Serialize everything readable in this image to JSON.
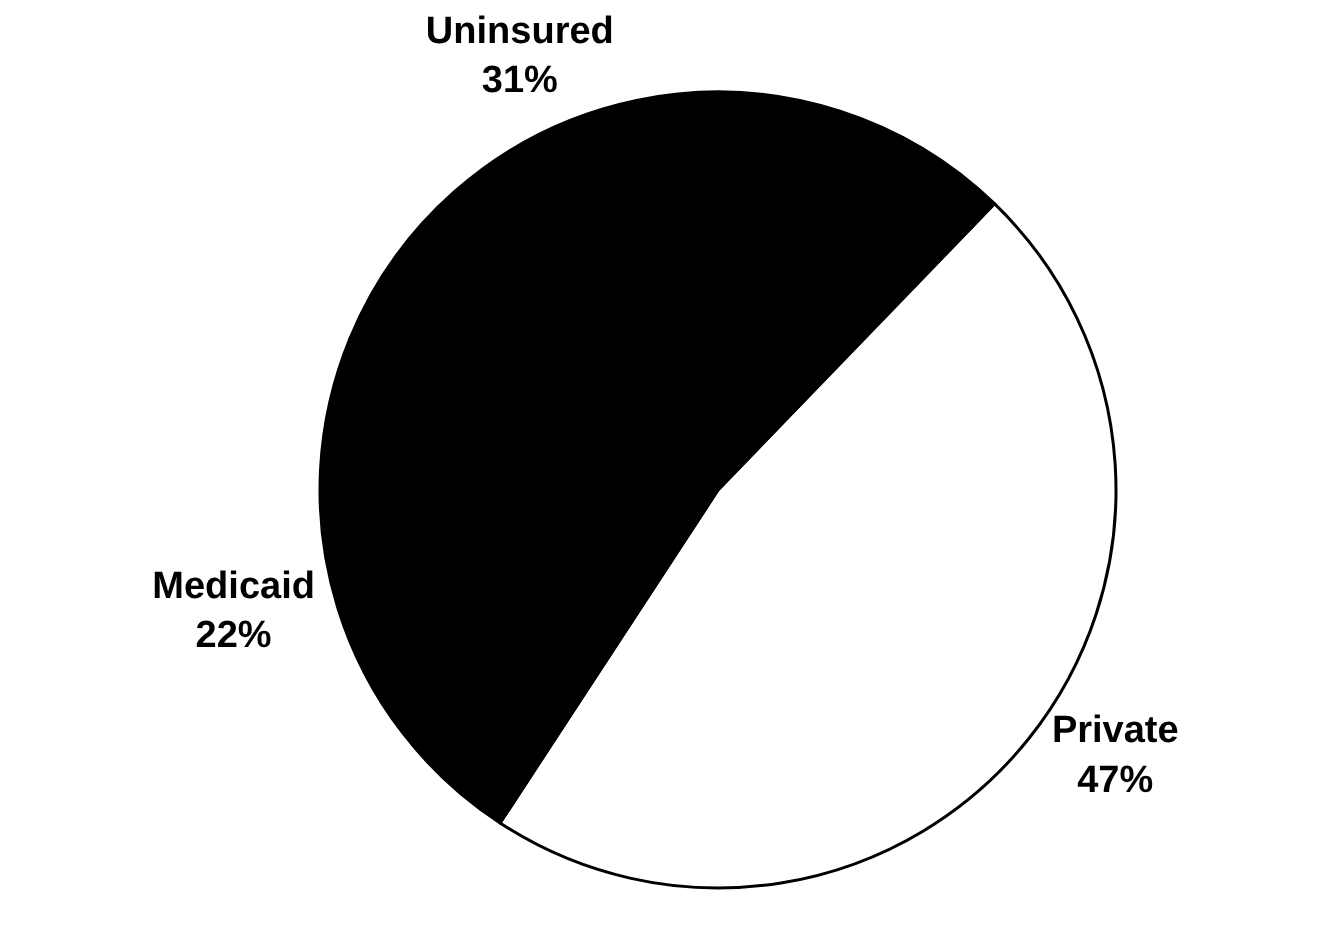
{
  "chart_data": {
    "type": "pie",
    "categories": [
      "Private",
      "Medicaid",
      "Uninsured"
    ],
    "values": [
      47,
      22,
      31
    ],
    "value_labels": [
      "47%",
      "22%",
      "31%"
    ],
    "colors": [
      "#ffffff",
      "#000000",
      "#000000"
    ],
    "legend": false
  }
}
